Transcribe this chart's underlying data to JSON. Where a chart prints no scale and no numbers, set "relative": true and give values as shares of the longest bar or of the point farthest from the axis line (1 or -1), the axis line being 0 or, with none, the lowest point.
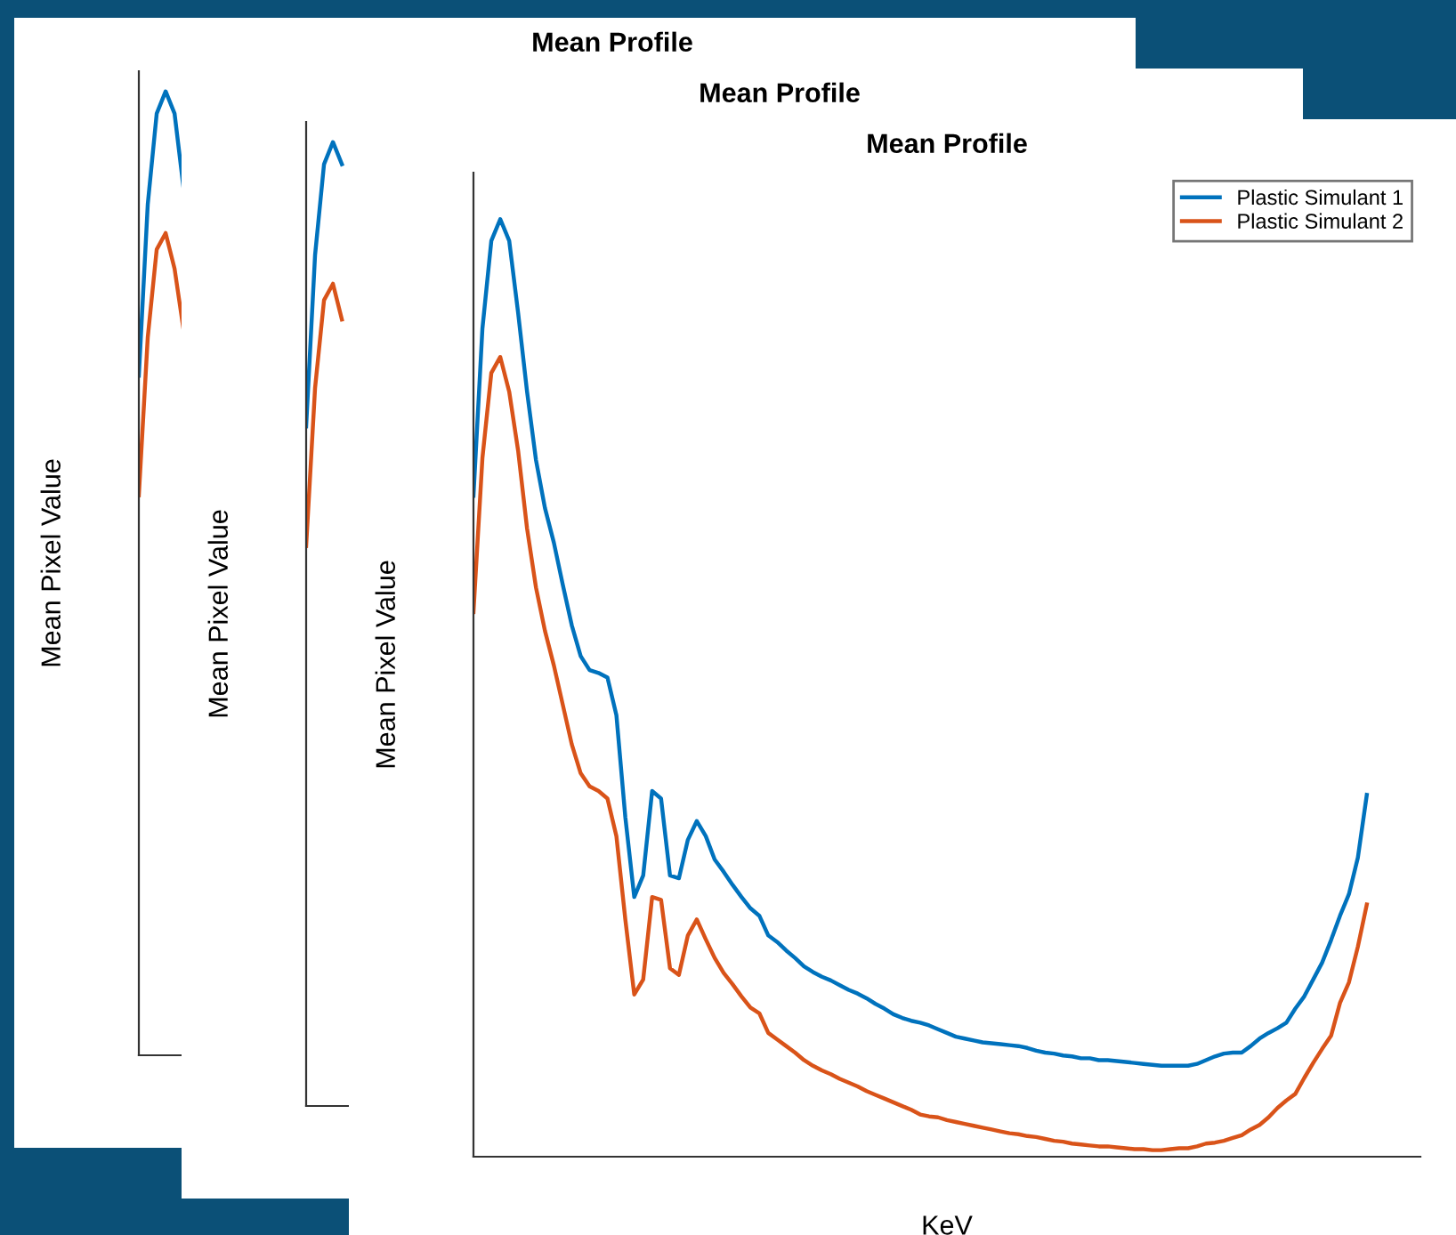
{
  "chart_data": [
    {
      "type": "line",
      "title": "Mean Profile",
      "ylabel": "Mean Pixel Value",
      "relative": true,
      "legend": false,
      "categories": [
        null,
        null,
        null,
        null,
        null,
        null,
        null,
        null,
        null,
        null,
        null,
        null,
        null,
        null,
        null,
        null,
        null,
        null,
        null,
        null,
        null,
        null,
        null,
        null,
        null,
        null,
        null,
        null,
        null,
        null,
        null,
        null,
        null,
        null,
        null,
        null,
        null,
        null,
        null,
        null,
        null,
        null,
        null,
        null,
        null,
        null,
        null,
        null,
        null,
        null,
        null,
        null,
        null,
        null,
        null,
        null,
        null,
        null,
        null,
        null,
        null,
        null,
        null,
        null,
        null,
        null,
        null,
        null,
        null,
        null,
        null,
        null,
        null,
        null,
        null,
        null,
        null,
        null,
        null,
        null,
        null,
        null,
        null,
        null,
        null,
        null,
        null,
        null,
        null,
        null,
        null,
        null,
        null,
        null,
        null,
        null,
        null,
        null,
        null,
        null,
        null
      ],
      "series": [
        {
          "color": "#0072bd",
          "values": [
            0.705,
            0.883,
            0.977,
            1.0,
            0.977,
            0.9,
            null,
            null,
            null,
            null,
            null,
            null,
            null,
            null,
            null,
            null,
            null,
            null,
            null,
            null,
            null,
            null,
            null,
            null,
            null,
            null,
            null,
            null,
            null,
            null,
            null,
            null,
            null,
            null,
            null,
            null,
            null,
            null,
            null,
            null,
            null,
            null,
            null,
            null,
            null,
            null,
            null,
            null,
            null,
            null,
            null,
            null,
            null,
            null,
            null,
            null,
            null,
            null,
            null,
            null,
            null,
            null,
            null,
            null,
            null,
            null,
            null,
            null,
            null,
            null,
            null,
            null,
            null,
            null,
            null,
            null,
            null,
            null,
            null,
            null,
            null,
            null,
            null,
            null,
            null,
            null,
            null,
            null,
            null,
            null,
            null,
            null,
            null,
            null,
            null,
            null,
            null,
            null,
            null,
            null,
            null
          ]
        },
        {
          "color": "#d95319",
          "values": [
            0.581,
            0.745,
            0.836,
            0.853,
            0.816,
            0.753,
            null,
            null,
            null,
            null,
            null,
            null,
            null,
            null,
            null,
            null,
            null,
            null,
            null,
            null,
            null,
            null,
            null,
            null,
            null,
            null,
            null,
            null,
            null,
            null,
            null,
            null,
            null,
            null,
            null,
            null,
            null,
            null,
            null,
            null,
            null,
            null,
            null,
            null,
            null,
            null,
            null,
            null,
            null,
            null,
            null,
            null,
            null,
            null,
            null,
            null,
            null,
            null,
            null,
            null,
            null,
            null,
            null,
            null,
            null,
            null,
            null,
            null,
            null,
            null,
            null,
            null,
            null,
            null,
            null,
            null,
            null,
            null,
            null,
            null,
            null,
            null,
            null,
            null,
            null,
            null,
            null,
            null,
            null,
            null,
            null,
            null,
            null,
            null,
            null,
            null,
            null,
            null,
            null,
            null,
            null
          ]
        }
      ]
    },
    {
      "type": "line",
      "title": "Mean Profile",
      "ylabel": "Mean Pixel Value",
      "relative": true,
      "legend": false,
      "categories": [
        null,
        null,
        null,
        null,
        null,
        null,
        null,
        null,
        null,
        null,
        null,
        null,
        null,
        null,
        null,
        null,
        null,
        null,
        null,
        null,
        null,
        null,
        null,
        null,
        null,
        null,
        null,
        null,
        null,
        null,
        null,
        null,
        null,
        null,
        null,
        null,
        null,
        null,
        null,
        null,
        null,
        null,
        null,
        null,
        null,
        null,
        null,
        null,
        null,
        null,
        null,
        null,
        null,
        null,
        null,
        null,
        null,
        null,
        null,
        null,
        null,
        null,
        null,
        null,
        null,
        null,
        null,
        null,
        null,
        null,
        null,
        null,
        null,
        null,
        null,
        null,
        null,
        null,
        null,
        null,
        null,
        null,
        null,
        null,
        null,
        null,
        null,
        null,
        null,
        null,
        null,
        null,
        null,
        null,
        null,
        null,
        null,
        null,
        null,
        null,
        null
      ],
      "series": [
        {
          "color": "#0072bd",
          "values": [
            0.705,
            0.883,
            0.977,
            1.0,
            0.977,
            null,
            null,
            null,
            null,
            null,
            null,
            null,
            null,
            null,
            null,
            null,
            null,
            null,
            null,
            null,
            null,
            null,
            null,
            null,
            null,
            null,
            null,
            null,
            null,
            null,
            null,
            null,
            null,
            null,
            null,
            null,
            null,
            null,
            null,
            null,
            null,
            null,
            null,
            null,
            null,
            null,
            null,
            null,
            null,
            null,
            null,
            null,
            null,
            null,
            null,
            null,
            null,
            null,
            null,
            null,
            null,
            null,
            null,
            null,
            null,
            null,
            null,
            null,
            null,
            null,
            null,
            null,
            null,
            null,
            null,
            null,
            null,
            null,
            null,
            null,
            null,
            null,
            null,
            null,
            null,
            null,
            null,
            null,
            null,
            null,
            null,
            null,
            null,
            null,
            null,
            null,
            null,
            null,
            null,
            null,
            null
          ]
        },
        {
          "color": "#d95319",
          "values": [
            0.581,
            0.745,
            0.836,
            0.853,
            0.816,
            null,
            null,
            null,
            null,
            null,
            null,
            null,
            null,
            null,
            null,
            null,
            null,
            null,
            null,
            null,
            null,
            null,
            null,
            null,
            null,
            null,
            null,
            null,
            null,
            null,
            null,
            null,
            null,
            null,
            null,
            null,
            null,
            null,
            null,
            null,
            null,
            null,
            null,
            null,
            null,
            null,
            null,
            null,
            null,
            null,
            null,
            null,
            null,
            null,
            null,
            null,
            null,
            null,
            null,
            null,
            null,
            null,
            null,
            null,
            null,
            null,
            null,
            null,
            null,
            null,
            null,
            null,
            null,
            null,
            null,
            null,
            null,
            null,
            null,
            null,
            null,
            null,
            null,
            null,
            null,
            null,
            null,
            null,
            null,
            null,
            null,
            null,
            null,
            null,
            null,
            null,
            null,
            null,
            null,
            null,
            null
          ]
        }
      ]
    },
    {
      "type": "line",
      "title": "Mean Profile",
      "xlabel": "KeV",
      "ylabel": "Mean Pixel Value",
      "relative": true,
      "legend": "top right",
      "categories": [
        null,
        null,
        null,
        null,
        null,
        null,
        null,
        null,
        null,
        null,
        null,
        null,
        null,
        null,
        null,
        null,
        null,
        null,
        null,
        null,
        null,
        null,
        null,
        null,
        null,
        null,
        null,
        null,
        null,
        null,
        null,
        null,
        null,
        null,
        null,
        null,
        null,
        null,
        null,
        null,
        null,
        null,
        null,
        null,
        null,
        null,
        null,
        null,
        null,
        null,
        null,
        null,
        null,
        null,
        null,
        null,
        null,
        null,
        null,
        null,
        null,
        null,
        null,
        null,
        null,
        null,
        null,
        null,
        null,
        null,
        null,
        null,
        null,
        null,
        null,
        null,
        null,
        null,
        null,
        null,
        null,
        null,
        null,
        null,
        null,
        null,
        null,
        null,
        null,
        null,
        null,
        null,
        null,
        null,
        null,
        null,
        null,
        null,
        null,
        null,
        null
      ],
      "series": [
        {
          "name": "Plastic Simulant 1",
          "color": "#0072bd",
          "values": [
            0.705,
            0.883,
            0.977,
            1.0,
            0.977,
            0.9,
            0.816,
            0.743,
            0.692,
            0.655,
            0.61,
            0.567,
            0.534,
            0.519,
            0.516,
            0.511,
            0.471,
            0.362,
            0.277,
            0.3,
            0.39,
            0.382,
            0.3,
            0.297,
            0.338,
            0.358,
            0.342,
            0.317,
            0.304,
            0.29,
            0.277,
            0.265,
            0.257,
            0.236,
            0.229,
            0.22,
            0.212,
            0.203,
            0.197,
            0.192,
            0.188,
            0.183,
            0.178,
            0.174,
            0.169,
            0.163,
            0.158,
            0.152,
            0.148,
            0.145,
            0.143,
            0.14,
            0.136,
            0.132,
            0.128,
            0.126,
            0.124,
            0.122,
            0.121,
            0.12,
            0.119,
            0.118,
            0.116,
            0.113,
            0.111,
            0.11,
            0.108,
            0.107,
            0.105,
            0.105,
            0.103,
            0.103,
            0.102,
            0.101,
            0.1,
            0.099,
            0.098,
            0.097,
            0.097,
            0.097,
            0.097,
            0.099,
            0.103,
            0.107,
            0.11,
            0.111,
            0.111,
            0.118,
            0.126,
            0.132,
            0.137,
            0.143,
            0.158,
            0.171,
            0.189,
            0.207,
            0.231,
            0.257,
            0.28,
            0.319,
            0.386
          ]
        },
        {
          "name": "Plastic Simulant 2",
          "color": "#d95319",
          "values": [
            0.581,
            0.745,
            0.836,
            0.853,
            0.816,
            0.753,
            0.67,
            0.607,
            0.561,
            0.524,
            0.482,
            0.44,
            0.409,
            0.395,
            0.39,
            0.382,
            0.342,
            0.253,
            0.173,
            0.189,
            0.277,
            0.274,
            0.201,
            0.194,
            0.236,
            0.253,
            0.232,
            0.212,
            0.196,
            0.184,
            0.171,
            0.159,
            0.153,
            0.132,
            0.125,
            0.118,
            0.111,
            0.103,
            0.097,
            0.092,
            0.088,
            0.083,
            0.079,
            0.075,
            0.07,
            0.066,
            0.062,
            0.058,
            0.054,
            0.05,
            0.045,
            0.043,
            0.042,
            0.039,
            0.037,
            0.035,
            0.033,
            0.031,
            0.029,
            0.027,
            0.025,
            0.024,
            0.022,
            0.021,
            0.019,
            0.017,
            0.016,
            0.014,
            0.013,
            0.012,
            0.011,
            0.011,
            0.01,
            0.009,
            0.008,
            0.008,
            0.007,
            0.007,
            0.008,
            0.009,
            0.009,
            0.011,
            0.014,
            0.015,
            0.017,
            0.02,
            0.023,
            0.029,
            0.034,
            0.042,
            0.052,
            0.06,
            0.067,
            0.084,
            0.1,
            0.115,
            0.129,
            0.164,
            0.186,
            0.224,
            0.269
          ]
        }
      ]
    }
  ]
}
